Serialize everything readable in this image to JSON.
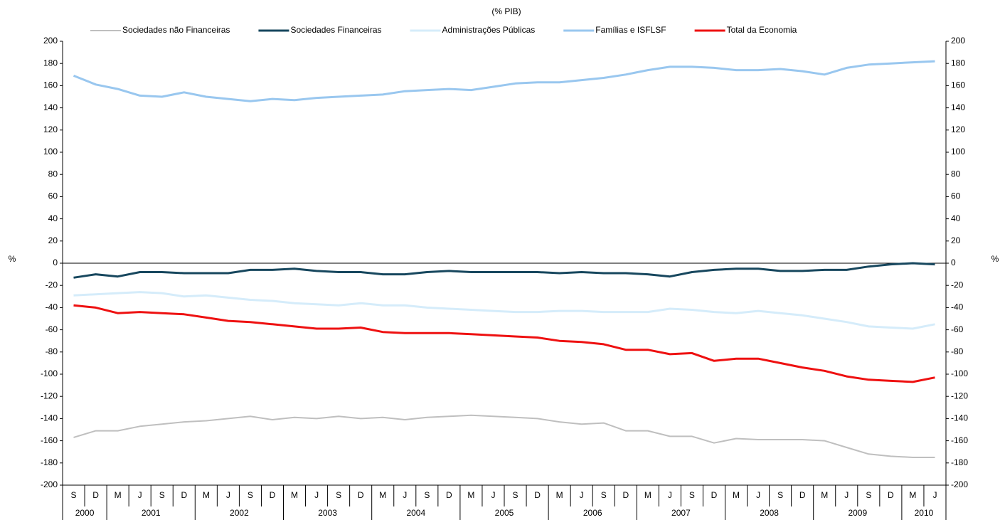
{
  "chart_data": {
    "type": "line",
    "subtitle": "(% PIB)",
    "y_label": "%",
    "y2_label": "%",
    "categories": [
      "S",
      "D",
      "M",
      "J",
      "S",
      "D",
      "M",
      "J",
      "S",
      "D",
      "M",
      "J",
      "S",
      "D",
      "M",
      "J",
      "S",
      "D",
      "M",
      "J",
      "S",
      "D",
      "M",
      "J",
      "S",
      "D",
      "M",
      "J",
      "S",
      "D",
      "M",
      "J",
      "S",
      "D",
      "M",
      "J",
      "S",
      "D",
      "M",
      "J"
    ],
    "year_groups": [
      {
        "label": "2000",
        "quarters": 2
      },
      {
        "label": "2001",
        "quarters": 4
      },
      {
        "label": "2002",
        "quarters": 4
      },
      {
        "label": "2003",
        "quarters": 4
      },
      {
        "label": "2004",
        "quarters": 4
      },
      {
        "label": "2005",
        "quarters": 4
      },
      {
        "label": "2006",
        "quarters": 4
      },
      {
        "label": "2007",
        "quarters": 4
      },
      {
        "label": "2008",
        "quarters": 4
      },
      {
        "label": "2009",
        "quarters": 4
      },
      {
        "label": "2010",
        "quarters": 2
      }
    ],
    "series": [
      {
        "name": "Sociedades não Financeiras",
        "color": "#bfbfbf",
        "width": 2,
        "values": [
          -157,
          -151,
          -151,
          -147,
          -145,
          -143,
          -142,
          -140,
          -138,
          -141,
          -139,
          -140,
          -138,
          -140,
          -139,
          -141,
          -139,
          -138,
          -137,
          -138,
          -139,
          -140,
          -143,
          -145,
          -144,
          -151,
          -151,
          -156,
          -156,
          -162,
          -158,
          -159,
          -159,
          -159,
          -160,
          -166,
          -172,
          -174,
          -175,
          -175
        ]
      },
      {
        "name": "Sociedades Financeiras",
        "color": "#17475e",
        "width": 3,
        "values": [
          -13,
          -10,
          -12,
          -8,
          -8,
          -9,
          -9,
          -9,
          -6,
          -6,
          -5,
          -7,
          -8,
          -8,
          -10,
          -10,
          -8,
          -7,
          -8,
          -8,
          -8,
          -8,
          -9,
          -8,
          -9,
          -9,
          -10,
          -12,
          -8,
          -6,
          -5,
          -5,
          -7,
          -7,
          -6,
          -6,
          -3,
          -1,
          0,
          -1
        ]
      },
      {
        "name": "Administrações Públicas",
        "color": "#d5ecfa",
        "width": 3,
        "values": [
          -29,
          -28,
          -27,
          -26,
          -27,
          -30,
          -29,
          -31,
          -33,
          -34,
          -36,
          -37,
          -38,
          -36,
          -38,
          -38,
          -40,
          -41,
          -42,
          -43,
          -44,
          -44,
          -43,
          -43,
          -44,
          -44,
          -44,
          -41,
          -42,
          -44,
          -45,
          -43,
          -45,
          -47,
          -50,
          -53,
          -57,
          -58,
          -59,
          -55
        ]
      },
      {
        "name": "Famílias e ISFLSF",
        "color": "#99c7ef",
        "width": 3,
        "values": [
          169,
          161,
          157,
          151,
          150,
          154,
          150,
          148,
          146,
          148,
          147,
          149,
          150,
          151,
          152,
          155,
          156,
          157,
          156,
          159,
          162,
          163,
          163,
          165,
          167,
          170,
          174,
          177,
          177,
          176,
          174,
          174,
          175,
          173,
          170,
          176,
          179,
          180,
          181,
          182
        ]
      },
      {
        "name": "Total da Economia",
        "color": "#ee1111",
        "width": 3,
        "values": [
          -38,
          -40,
          -45,
          -44,
          -45,
          -46,
          -49,
          -52,
          -53,
          -55,
          -57,
          -59,
          -59,
          -58,
          -62,
          -63,
          -63,
          -63,
          -64,
          -65,
          -66,
          -67,
          -70,
          -71,
          -73,
          -78,
          -78,
          -82,
          -81,
          -88,
          -86,
          -86,
          -90,
          -94,
          -97,
          -102,
          -105,
          -106,
          -107,
          -103
        ]
      }
    ],
    "ylim": [
      -200,
      200
    ],
    "yticks": [
      -200,
      -180,
      -160,
      -140,
      -120,
      -100,
      -80,
      -60,
      -40,
      -20,
      0,
      20,
      40,
      60,
      80,
      100,
      120,
      140,
      160,
      180,
      200
    ],
    "y2lim": [
      -200,
      200
    ],
    "y2ticks": [
      -200,
      -180,
      -160,
      -140,
      -120,
      -100,
      -80,
      -60,
      -40,
      -20,
      0,
      20,
      40,
      60,
      80,
      100,
      120,
      140,
      160,
      180,
      200
    ],
    "legend": "top",
    "grid": false
  }
}
